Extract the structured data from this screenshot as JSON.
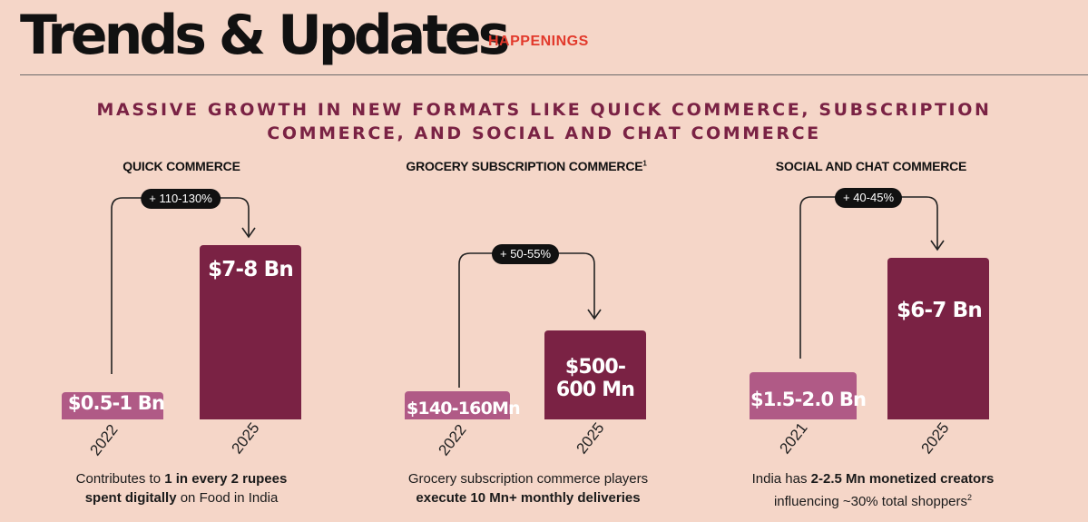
{
  "header": {
    "title": "Trends & Updates",
    "tag": "HAPPENINGS"
  },
  "headline": {
    "line1": "MASSIVE GROWTH IN NEW FORMATS LIKE QUICK COMMERCE, SUBSCRIPTION",
    "line2": "COMMERCE, AND SOCIAL AND CHAT COMMERCE"
  },
  "chart_data": [
    {
      "type": "bar",
      "title": "QUICK COMMERCE",
      "categories": [
        "2022",
        "2025"
      ],
      "values": [
        0.75,
        7.5
      ],
      "value_labels": [
        "$0.5-1 Bn",
        "$7-8 Bn"
      ],
      "unit": "$ Bn",
      "growth_label": "+ 110-130%",
      "note_parts": [
        "Contributes to ",
        "1 in every 2 rupees",
        "spent digitally",
        " on Food in India"
      ]
    },
    {
      "type": "bar",
      "title": "GROCERY SUBSCRIPTION COMMERCE",
      "title_sup": "1",
      "categories": [
        "2022",
        "2025"
      ],
      "values": [
        150,
        550
      ],
      "value_labels": [
        "$140-160Mn",
        "$500-600 Mn"
      ],
      "value_label_lines": [
        [
          "$140-160Mn"
        ],
        [
          "$500-",
          "600 Mn"
        ]
      ],
      "unit": "$ Mn",
      "growth_label": "+ 50-55%",
      "note_parts": [
        "Grocery subscription commerce players",
        "execute 10 Mn+ monthly deliveries"
      ]
    },
    {
      "type": "bar",
      "title": "SOCIAL AND CHAT COMMERCE",
      "categories": [
        "2021",
        "2025"
      ],
      "values": [
        1.75,
        6.5
      ],
      "value_labels": [
        "$1.5-2.0 Bn",
        "$6-7 Bn"
      ],
      "unit": "$ Bn",
      "growth_label": "+ 40-45%",
      "note_parts": [
        "India has ",
        "2-2.5 Mn monetized creators",
        "influencing ~30% total shoppers",
        "2"
      ]
    }
  ],
  "colors": {
    "background": "#f5d6c8",
    "bar_small": "#b05a86",
    "bar_big": "#7a2244",
    "headline": "#7a2244",
    "tag": "#e2392b"
  }
}
